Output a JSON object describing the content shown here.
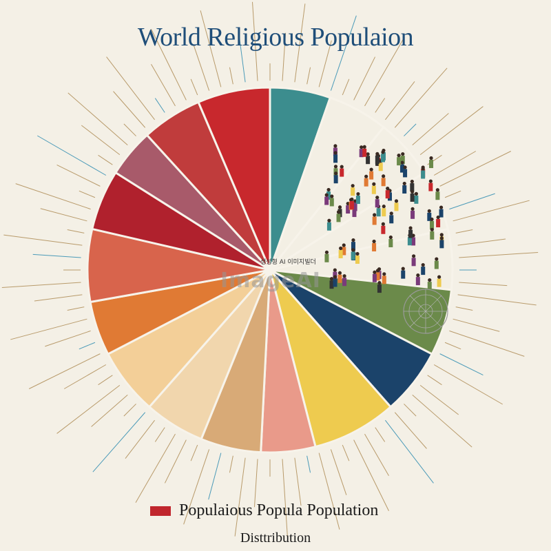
{
  "title": "World Religious Populaion",
  "legend": {
    "color": "#c0262d",
    "label": "Populaious Popula Population",
    "sublabel": "Disttribution"
  },
  "watermark": {
    "text": "ImageAI",
    "subtext": "생성형 AI 이미지빌더"
  },
  "chart_data": {
    "type": "pie",
    "title": "World Religious Populaion",
    "slices": [
      {
        "value": 5.0,
        "color": "#3c8d8e"
      },
      {
        "value": 5.0,
        "color": "#f3efe4"
      },
      {
        "value": 5.0,
        "color": "#f3efe4"
      },
      {
        "value": 5.0,
        "color": "#f3efe4"
      },
      {
        "value": 5.0,
        "color": "#f3efe4"
      },
      {
        "value": 5.5,
        "color": "#6b8a4a"
      },
      {
        "value": 5.5,
        "color": "#1b436a"
      },
      {
        "value": 7.0,
        "color": "#eecb4f"
      },
      {
        "value": 4.5,
        "color": "#e99a8a"
      },
      {
        "value": 5.0,
        "color": "#d8aa77"
      },
      {
        "value": 5.0,
        "color": "#f1d6ad"
      },
      {
        "value": 5.5,
        "color": "#f3cf98"
      },
      {
        "value": 4.5,
        "color": "#e07a34"
      },
      {
        "value": 6.0,
        "color": "#d8644c"
      },
      {
        "value": 5.0,
        "color": "#b0212d"
      },
      {
        "value": 4.0,
        "color": "#a85a6a"
      },
      {
        "value": 5.0,
        "color": "#c03c3c"
      },
      {
        "value": 6.0,
        "color": "#c8282d"
      }
    ]
  }
}
